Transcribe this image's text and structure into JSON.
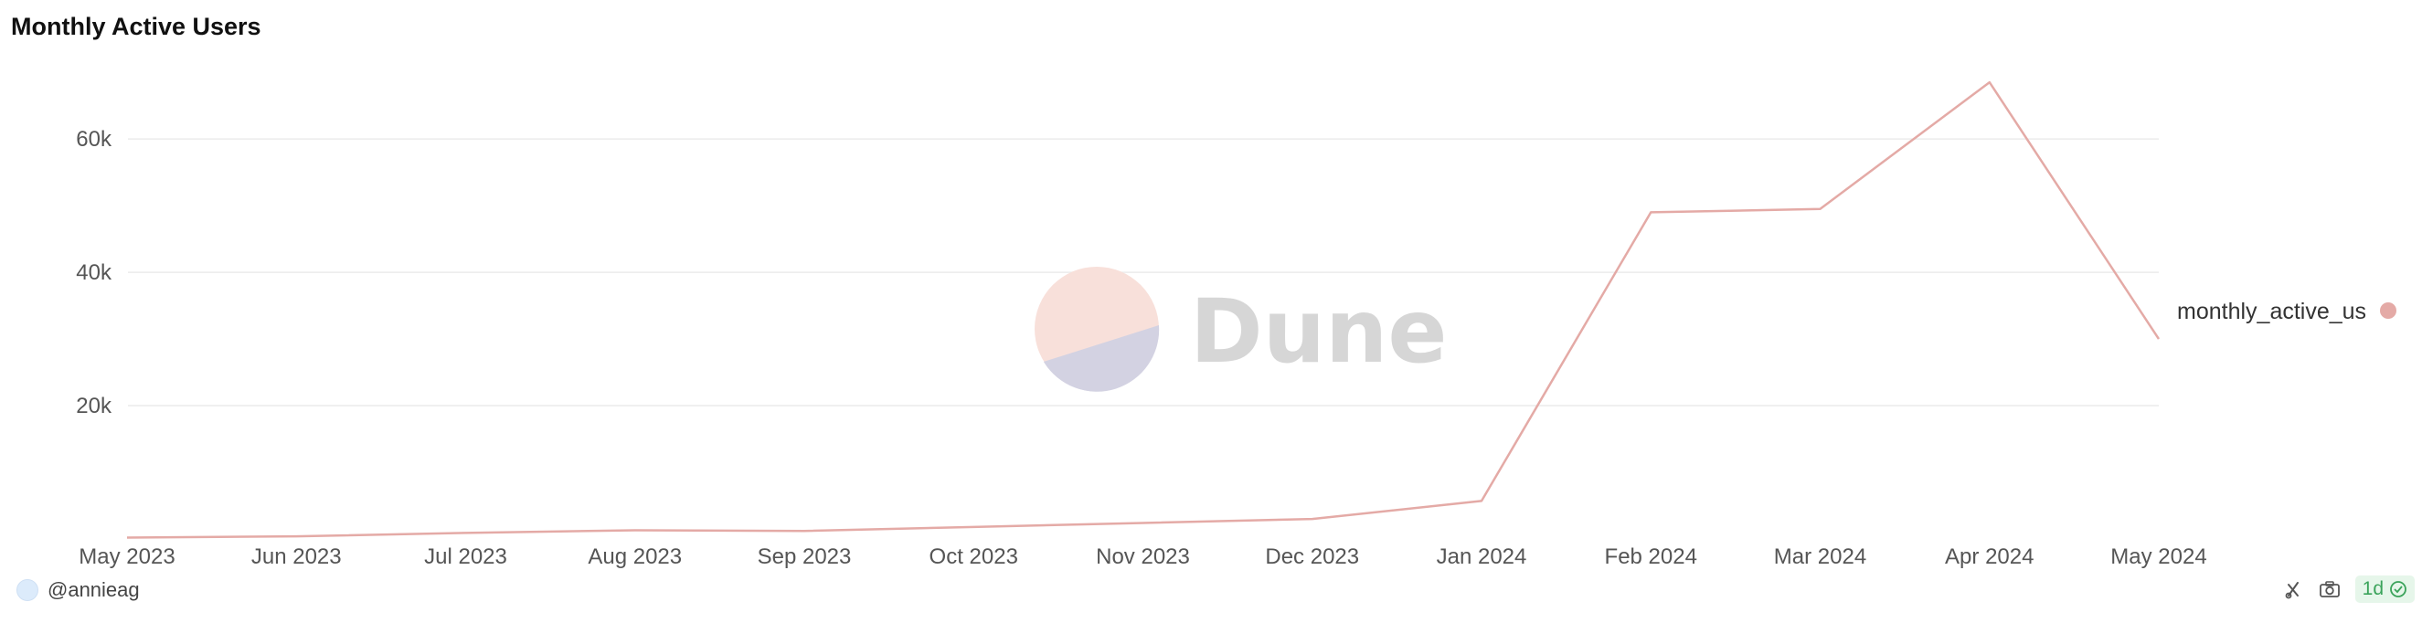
{
  "chart_data": {
    "type": "line",
    "title": "Monthly Active Users",
    "x": [
      "May 2023",
      "Jun 2023",
      "Jul 2023",
      "Aug 2023",
      "Sep 2023",
      "Oct 2023",
      "Nov 2023",
      "Dec 2023",
      "Jan 2024",
      "Feb 2024",
      "Mar 2024",
      "Apr 2024",
      "May 2024"
    ],
    "series": [
      {
        "name": "monthly_active_us",
        "values": [
          200,
          400,
          900,
          1300,
          1200,
          1800,
          2400,
          3000,
          5700,
          49000,
          49500,
          68500,
          30000
        ],
        "color": "#e4aaa6"
      }
    ],
    "y_ticks": [
      20000,
      40000,
      60000
    ],
    "y_tick_labels": [
      "20k",
      "40k",
      "60k"
    ],
    "ylim": [
      0,
      74000
    ],
    "grid": true,
    "legend_position": "right"
  },
  "watermark": {
    "text": "Dune"
  },
  "footer": {
    "author": "@annieag",
    "freshness": "1d"
  }
}
